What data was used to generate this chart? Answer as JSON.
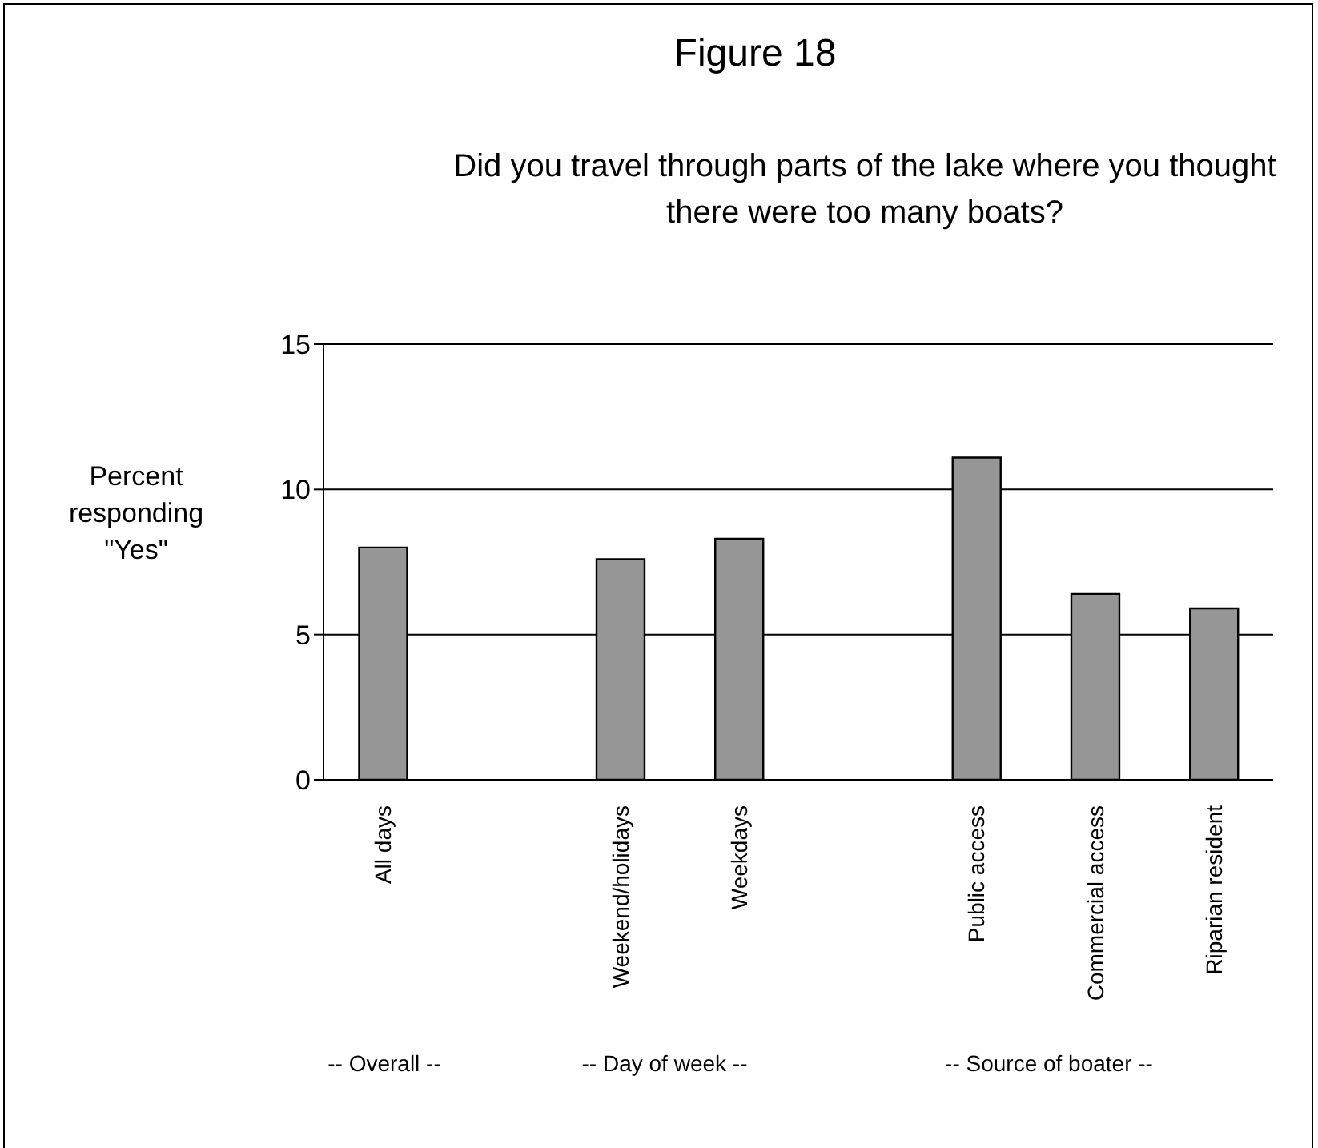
{
  "chart_data": {
    "type": "bar",
    "title": "Figure 18",
    "subtitle": "Did you travel through parts of the lake where you thought there were too many boats?",
    "ylabel": "Percent responding \"Yes\"",
    "categories": [
      "All days",
      null,
      "Weekend/holidays",
      "Weekdays",
      null,
      "Public access",
      "Commercial access",
      "Riparian resident"
    ],
    "values": [
      8.0,
      null,
      7.6,
      8.3,
      null,
      11.1,
      6.4,
      5.9
    ],
    "color": "#969696",
    "ylim": [
      0,
      15
    ],
    "yticks": [
      0,
      5,
      10,
      15
    ],
    "grid": "y",
    "annotations": [
      "-- Overall --",
      "-- Day of week --",
      "-- Source of boater --"
    ]
  }
}
